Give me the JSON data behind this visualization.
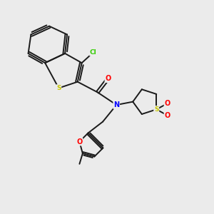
{
  "background_color": "#ebebeb",
  "bond_color": "#1a1a1a",
  "atom_colors": {
    "S": "#c8c800",
    "O": "#ff0000",
    "N": "#0000ff",
    "Cl": "#33cc00",
    "C": "#1a1a1a"
  },
  "figsize": [
    3.0,
    3.0
  ],
  "dpi": 100,
  "lw": 1.4
}
